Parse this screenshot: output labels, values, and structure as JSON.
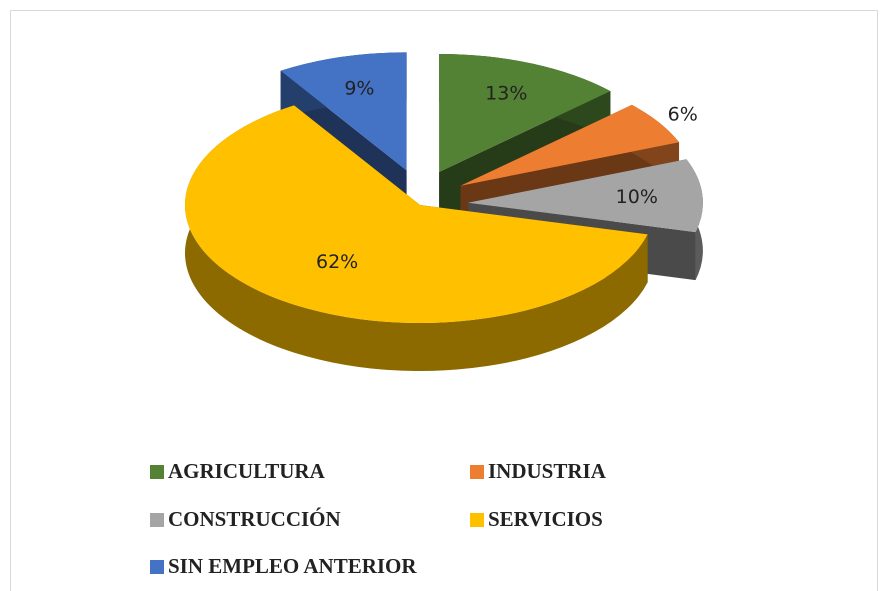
{
  "chart_data": {
    "type": "pie3d",
    "categories": [
      "AGRICULTURA",
      "INDUSTRIA",
      "CONSTRUCCIÓN",
      "SERVICIOS",
      "SIN EMPLEO ANTERIOR"
    ],
    "values": [
      13,
      6,
      10,
      62,
      9
    ],
    "value_labels": [
      "13%",
      "6%",
      "10%",
      "62%",
      "9%"
    ],
    "colors": [
      "#548235",
      "#ed7d31",
      "#a5a5a5",
      "#ffc000",
      "#4472c4"
    ],
    "legend": "bottom"
  }
}
